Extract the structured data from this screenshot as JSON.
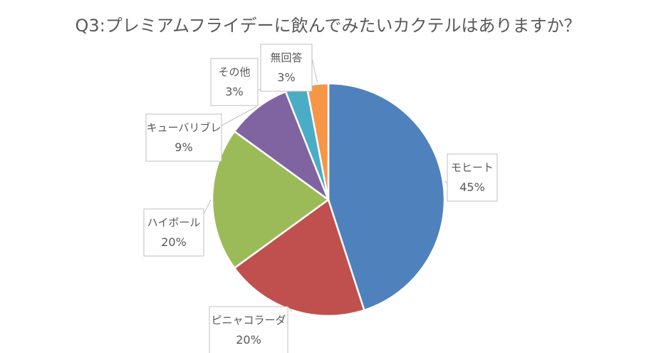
{
  "chart_data": {
    "type": "pie",
    "title": "Q3:プレミアムフライデーに飲んでみたいカクテルはありますか？",
    "categories": [
      "モヒート",
      "ピニャコラーダ",
      "ハイボール",
      "キューバリブレ",
      "その他",
      "無回答"
    ],
    "values": [
      45,
      20,
      20,
      9,
      3,
      3
    ],
    "value_labels": [
      "45%",
      "20%",
      "20%",
      "9%",
      "3%",
      "3%"
    ],
    "colors": [
      "#4F81BD",
      "#C0504D",
      "#9BBB59",
      "#8064A2",
      "#4BACC6",
      "#F79646"
    ],
    "start_angle": "12 o'clock",
    "direction": "clockwise",
    "legend": "none"
  }
}
